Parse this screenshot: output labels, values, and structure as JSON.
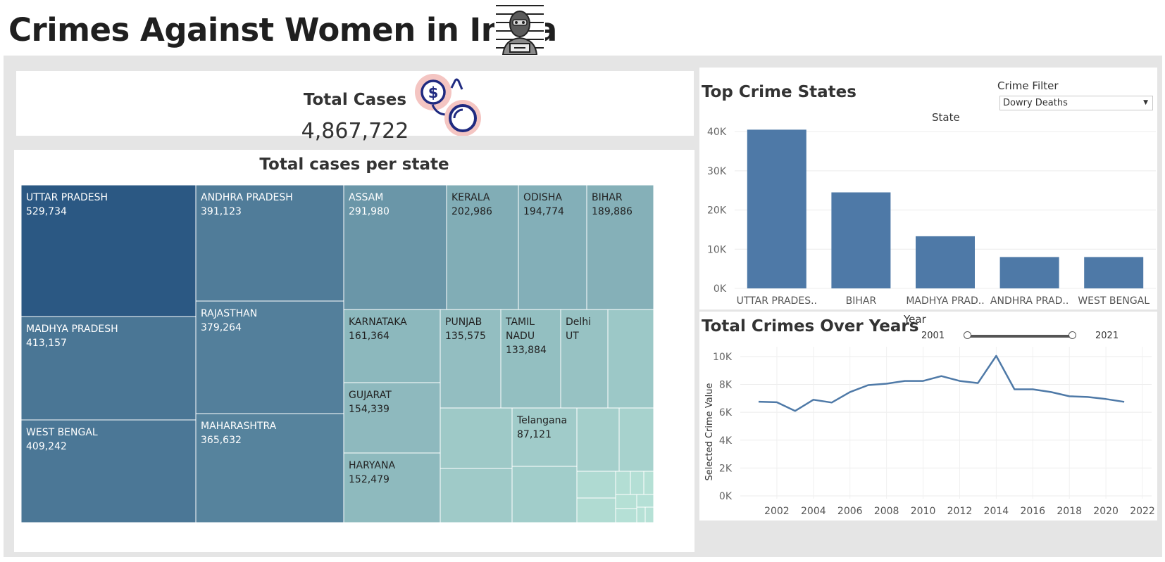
{
  "page": {
    "title": "Crimes Against Women in India",
    "title_icon": "prisoner-mugshot-icon"
  },
  "kpi": {
    "title": "Total Cases",
    "value": "4,867,722",
    "icon": "handcuffs-money-icon"
  },
  "treemap": {
    "title": "Total cases per state",
    "type": "treemap",
    "color_dark": "#2b5883",
    "color_light": "#b6e1d6"
  },
  "top_states": {
    "title": "Top Crime States",
    "header": "State",
    "filter": {
      "label": "Crime Filter",
      "selected": "Dowry Deaths"
    }
  },
  "years": {
    "title": "Total Crimes Over Years",
    "slider": {
      "label": "Year",
      "min": "2001",
      "max": "2021"
    }
  },
  "chart_data": [
    {
      "type": "treemap",
      "title": "Total cases per state",
      "items": [
        {
          "name": "UTTAR PRADESH",
          "value": 529734,
          "label": "529,734"
        },
        {
          "name": "MADHYA PRADESH",
          "value": 413157,
          "label": "413,157"
        },
        {
          "name": "WEST BENGAL",
          "value": 409242,
          "label": "409,242"
        },
        {
          "name": "ANDHRA PRADESH",
          "value": 391123,
          "label": "391,123"
        },
        {
          "name": "RAJASTHAN",
          "value": 379264,
          "label": "379,264"
        },
        {
          "name": "MAHARASHTRA",
          "value": 365632,
          "label": "365,632"
        },
        {
          "name": "ASSAM",
          "value": 291980,
          "label": "291,980"
        },
        {
          "name": "KERALA",
          "value": 202986,
          "label": "202,986"
        },
        {
          "name": "ODISHA",
          "value": 194774,
          "label": "194,774"
        },
        {
          "name": "BIHAR",
          "value": 189886,
          "label": "189,886"
        },
        {
          "name": "KARNATAKA",
          "value": 161364,
          "label": "161,364"
        },
        {
          "name": "PUNJAB",
          "value": 135575,
          "label": "135,575"
        },
        {
          "name": "TAMIL NADU",
          "value": 133884,
          "label": "133,884"
        },
        {
          "name": "Delhi UT",
          "value": 120000,
          "label": ""
        },
        {
          "name": "GUJARAT",
          "value": 154339,
          "label": "154,339"
        },
        {
          "name": "HARYANA",
          "value": 152479,
          "label": "152,479"
        },
        {
          "name": "Telangana",
          "value": 87121,
          "label": "87,121"
        }
      ]
    },
    {
      "type": "bar",
      "title": "Top Crime States",
      "categories": [
        "UTTAR PRADES..",
        "BIHAR",
        "MADHYA PRAD..",
        "ANDHRA PRAD..",
        "WEST BENGAL"
      ],
      "values": [
        40500,
        24500,
        13300,
        8000,
        8000
      ],
      "ylim": [
        0,
        42000
      ],
      "yticks": [
        0,
        10000,
        20000,
        30000,
        40000
      ],
      "ytick_labels": [
        "0K",
        "10K",
        "20K",
        "30K",
        "40K"
      ],
      "color": "#4e79a7"
    },
    {
      "type": "line",
      "title": "Total Crimes Over Years",
      "ylabel": "Selected Crime Value",
      "x": [
        2001,
        2002,
        2003,
        2004,
        2005,
        2006,
        2007,
        2008,
        2009,
        2010,
        2011,
        2012,
        2013,
        2014,
        2015,
        2016,
        2017,
        2018,
        2019,
        2020,
        2021
      ],
      "values": [
        6760,
        6720,
        6100,
        6900,
        6700,
        7450,
        7950,
        8050,
        8250,
        8250,
        8600,
        8250,
        8100,
        10050,
        7650,
        7650,
        7450,
        7150,
        7100,
        6950,
        6750
      ],
      "xlim": [
        2000,
        2022.5
      ],
      "xticks": [
        2002,
        2004,
        2006,
        2008,
        2010,
        2012,
        2014,
        2016,
        2018,
        2020,
        2022
      ],
      "ylim": [
        0,
        10400
      ],
      "yticks": [
        0,
        2000,
        4000,
        6000,
        8000,
        10000
      ],
      "ytick_labels": [
        "0K",
        "2K",
        "4K",
        "6K",
        "8K",
        "10K"
      ],
      "color": "#4e79a7"
    }
  ]
}
